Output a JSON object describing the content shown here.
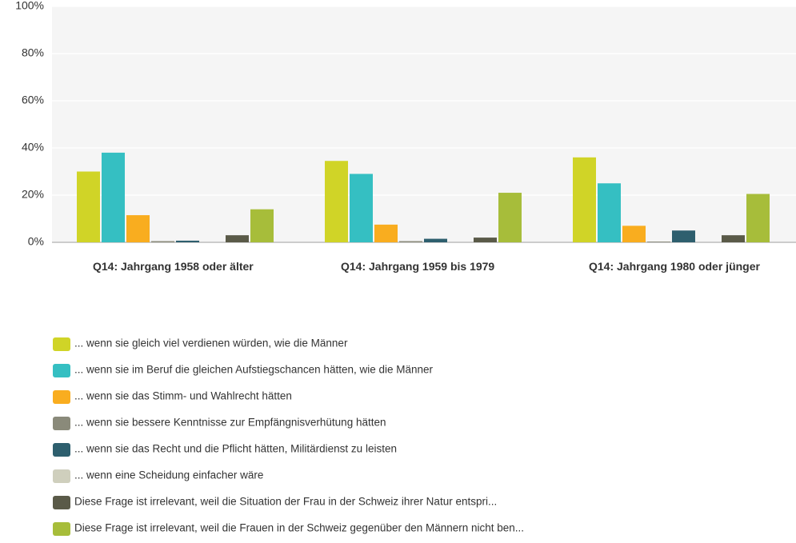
{
  "chart_data": {
    "type": "bar",
    "categories": [
      "Q14: Jahrgang 1958 oder älter",
      "Q14: Jahrgang 1959 bis 1979",
      "Q14: Jahrgang 1980 oder jünger"
    ],
    "series": [
      {
        "name": "... wenn sie gleich viel verdienen würden, wie die Männer",
        "color": "#d0d427",
        "values": [
          30,
          34.5,
          36
        ]
      },
      {
        "name": "... wenn sie im Beruf die gleichen Aufstiegschancen hätten, wie die Männer",
        "color": "#35bfc2",
        "values": [
          38,
          29,
          25
        ]
      },
      {
        "name": "... wenn sie das Stimm- und Wahlrecht hätten",
        "color": "#f9ad1f",
        "values": [
          11.5,
          7.5,
          7
        ]
      },
      {
        "name": "... wenn sie bessere Kenntnisse zur Empfängnisverhütung hätten",
        "color": "#8a8a7a",
        "values": [
          0.5,
          0.5,
          0.3
        ]
      },
      {
        "name": "... wenn sie das Recht und die Pflicht hätten, Militärdienst zu leisten",
        "color": "#2e5f6e",
        "values": [
          0.7,
          1.5,
          5
        ]
      },
      {
        "name": "... wenn eine Scheidung einfacher wäre",
        "color": "#cfcfbd",
        "values": [
          0,
          0,
          0
        ]
      },
      {
        "name": "Diese Frage ist irrelevant, weil die Situation der Frau in der Schweiz ihrer Natur entspri...",
        "color": "#5a5a48",
        "values": [
          3,
          2,
          3
        ]
      },
      {
        "name": "Diese Frage ist irrelevant, weil die Frauen in der Schweiz gegenüber den Männern nicht ben...",
        "color": "#a7bd3a",
        "values": [
          14,
          21,
          20.5
        ]
      }
    ],
    "ylim": [
      0,
      100
    ],
    "yticks": [
      {
        "value": 0,
        "label": "0%"
      },
      {
        "value": 20,
        "label": "20%"
      },
      {
        "value": 40,
        "label": "40%"
      },
      {
        "value": 60,
        "label": "60%"
      },
      {
        "value": 80,
        "label": "80%"
      },
      {
        "value": 100,
        "label": "100%"
      }
    ],
    "grid": true
  }
}
